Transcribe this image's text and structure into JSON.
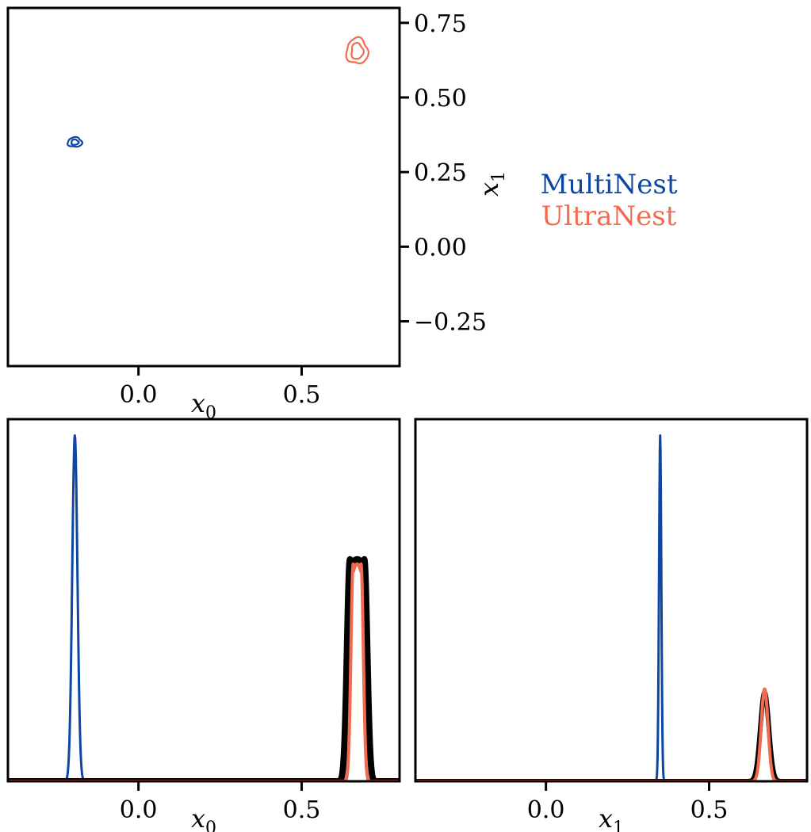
{
  "colors": {
    "multinest": "#0d47a1",
    "ultranest": "#f26b4f",
    "reference": "#000000",
    "axes": "#000000"
  },
  "legend": {
    "placement": "right of top-left panel",
    "items": [
      {
        "label": "MultiNest",
        "color": "#0d47a1"
      },
      {
        "label": "UltraNest",
        "color": "#f26b4f"
      }
    ]
  },
  "chart_data": [
    {
      "panel": "joint-x0-x1",
      "type": "contour",
      "xlabel_main": "x",
      "xlabel_sub": "0",
      "ylabel_main": "x",
      "ylabel_sub": "1",
      "xlim": [
        -0.4,
        0.8
      ],
      "ylim": [
        -0.4,
        0.8
      ],
      "xticks": [
        {
          "value": 0.0,
          "label": "0.0"
        },
        {
          "value": 0.5,
          "label": "0.5"
        }
      ],
      "yticks": [
        {
          "value": -0.25,
          "label": "−0.25"
        },
        {
          "value": 0.0,
          "label": "0.00"
        },
        {
          "value": 0.25,
          "label": "0.25"
        },
        {
          "value": 0.5,
          "label": "0.50"
        },
        {
          "value": 0.75,
          "label": "0.75"
        }
      ],
      "series": [
        {
          "name": "MultiNest",
          "center": [
            -0.195,
            0.35
          ],
          "levels": [
            {
              "rx": 0.022,
              "ry": 0.016
            },
            {
              "rx": 0.011,
              "ry": 0.009
            }
          ]
        },
        {
          "name": "UltraNest",
          "center": [
            0.67,
            0.655
          ],
          "levels": [
            {
              "rx": 0.033,
              "ry": 0.043
            },
            {
              "rx": 0.018,
              "ry": 0.027
            }
          ]
        }
      ]
    },
    {
      "panel": "marginal-x0",
      "type": "line",
      "xlabel_main": "x",
      "xlabel_sub": "0",
      "xlim": [
        -0.4,
        0.8
      ],
      "ylim": [
        0,
        1.0
      ],
      "xticks": [
        {
          "value": 0.0,
          "label": "0.0"
        },
        {
          "value": 0.5,
          "label": "0.5"
        }
      ],
      "series": [
        {
          "name": "MultiNest",
          "shape": "gauss",
          "mu": -0.195,
          "sigma": 0.008,
          "peak": 0.955,
          "width": 3
        },
        {
          "name": "reference",
          "shape": "flat",
          "mu": 0.67,
          "half_width": 0.022,
          "edge": 0.009,
          "peak": 0.613,
          "width": 8
        },
        {
          "name": "UltraNest",
          "shape": "flat",
          "mu": 0.67,
          "half_width": 0.012,
          "edge": 0.007,
          "peak": 0.6,
          "width": 4
        }
      ]
    },
    {
      "panel": "marginal-x1",
      "type": "line",
      "xlabel_main": "x",
      "xlabel_sub": "1",
      "xlim": [
        -0.4,
        0.8
      ],
      "ylim": [
        0,
        1.0
      ],
      "xticks": [
        {
          "value": 0.0,
          "label": "0.0"
        },
        {
          "value": 0.5,
          "label": "0.5"
        }
      ],
      "series": [
        {
          "name": "MultiNest",
          "shape": "gauss",
          "mu": 0.35,
          "sigma": 0.0035,
          "peak": 0.955,
          "width": 3
        },
        {
          "name": "reference",
          "shape": "gauss",
          "mu": 0.67,
          "sigma": 0.013,
          "peak": 0.245,
          "width": 6
        },
        {
          "name": "UltraNest",
          "shape": "gauss",
          "mu": 0.67,
          "sigma": 0.0105,
          "peak": 0.255,
          "width": 4
        }
      ]
    }
  ]
}
